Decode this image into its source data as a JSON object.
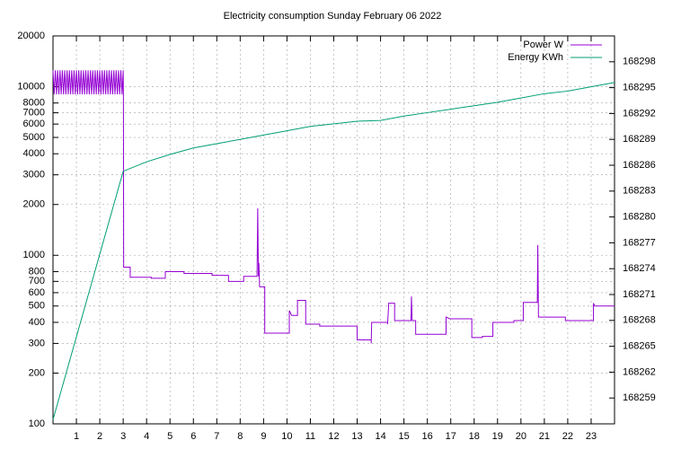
{
  "chart_data": {
    "type": "line",
    "title": "Electricity consumption Sunday February 06 2022",
    "xlim": [
      0,
      24
    ],
    "xticks": [
      1,
      2,
      3,
      4,
      5,
      6,
      7,
      8,
      9,
      10,
      11,
      12,
      13,
      14,
      15,
      16,
      17,
      18,
      19,
      20,
      21,
      22,
      23
    ],
    "ylim": [
      100,
      20000
    ],
    "yscale": "log",
    "yticks": [
      100,
      200,
      300,
      400,
      500,
      600,
      700,
      800,
      1000,
      2000,
      3000,
      4000,
      5000,
      6000,
      7000,
      8000,
      10000,
      20000
    ],
    "y2lim": [
      168256,
      168301
    ],
    "y2ticks": [
      168259,
      168262,
      168265,
      168268,
      168271,
      168274,
      168277,
      168280,
      168283,
      168286,
      168289,
      168292,
      168295,
      168298
    ],
    "grid": true,
    "legend": "top-right",
    "series": [
      {
        "name": "Power W",
        "color": "#9400d3",
        "x": [
          0,
          0.05,
          0.1,
          0.15,
          0.2,
          0.25,
          0.3,
          0.35,
          0.4,
          0.45,
          0.5,
          0.55,
          0.6,
          0.65,
          0.7,
          0.75,
          0.8,
          0.85,
          0.9,
          0.95,
          1,
          1.05,
          1.1,
          1.15,
          1.2,
          1.25,
          1.3,
          1.35,
          1.4,
          1.45,
          1.5,
          1.55,
          1.6,
          1.65,
          1.7,
          1.75,
          1.8,
          1.85,
          1.9,
          1.95,
          2,
          2.05,
          2.1,
          2.15,
          2.2,
          2.25,
          2.3,
          2.35,
          2.4,
          2.45,
          2.5,
          2.55,
          2.6,
          2.65,
          2.7,
          2.75,
          2.8,
          2.85,
          2.9,
          2.95,
          3.0,
          3.01,
          3.02,
          3.3,
          3.3,
          4.2,
          4.2,
          4.8,
          4.8,
          5.6,
          5.6,
          6.8,
          6.8,
          7.5,
          7.5,
          8.15,
          8.15,
          8.72,
          8.75,
          8.78,
          8.8,
          8.83,
          9.05,
          9.05,
          10.1,
          10.1,
          10.2,
          10.45,
          10.45,
          10.8,
          10.8,
          11.4,
          11.4,
          13.0,
          13.0,
          13.6,
          13.6,
          13.62,
          14.3,
          14.3,
          14.35,
          14.6,
          14.6,
          15.3,
          15.32,
          15.35,
          15.5,
          15.5,
          16.8,
          16.8,
          16.95,
          17.9,
          17.9,
          18.35,
          18.35,
          18.8,
          18.8,
          19.7,
          19.7,
          20.1,
          20.1,
          20.7,
          20.72,
          20.75,
          21.9,
          21.9,
          23.1,
          23.1,
          23.15,
          24
        ],
        "values": [
          12500,
          9000,
          12500,
          9000,
          12500,
          9000,
          12500,
          9000,
          12500,
          9000,
          12500,
          9000,
          12500,
          9000,
          12500,
          9000,
          12500,
          9000,
          12500,
          9000,
          12500,
          9000,
          12500,
          9000,
          12500,
          9000,
          12500,
          9000,
          12500,
          9000,
          12500,
          9000,
          12500,
          9000,
          12500,
          9000,
          12500,
          9000,
          12500,
          9000,
          12500,
          9000,
          12500,
          9000,
          12500,
          9000,
          12500,
          9000,
          12500,
          9000,
          12500,
          9000,
          12500,
          9000,
          12500,
          9000,
          12500,
          9000,
          12500,
          9000,
          12500,
          9000,
          850,
          850,
          740,
          740,
          730,
          730,
          800,
          800,
          780,
          780,
          760,
          760,
          700,
          700,
          750,
          750,
          1900,
          750,
          900,
          650,
          650,
          345,
          345,
          470,
          440,
          440,
          540,
          540,
          390,
          390,
          380,
          380,
          315,
          315,
          300,
          400,
          400,
          390,
          520,
          520,
          410,
          410,
          570,
          410,
          410,
          340,
          340,
          430,
          420,
          420,
          325,
          325,
          330,
          330,
          400,
          400,
          410,
          410,
          525,
          525,
          1150,
          430,
          430,
          410,
          410,
          520,
          500,
          500
        ]
      },
      {
        "name": "Energy KWh",
        "color": "#009e73",
        "axis": "y2",
        "x": [
          0,
          3,
          4,
          5,
          6,
          7,
          8,
          9,
          10,
          11,
          12,
          13,
          14,
          15,
          16,
          17,
          18,
          19,
          20,
          21,
          22,
          23,
          24
        ],
        "values": [
          168256.5,
          168285.3,
          168286.4,
          168287.25,
          168288,
          168288.5,
          168289,
          168289.5,
          168290,
          168290.5,
          168290.8,
          168291.1,
          168291.2,
          168291.7,
          168292.1,
          168292.5,
          168292.9,
          168293.3,
          168293.8,
          168294.3,
          168294.6,
          168295.1,
          168295.6
        ]
      }
    ]
  }
}
